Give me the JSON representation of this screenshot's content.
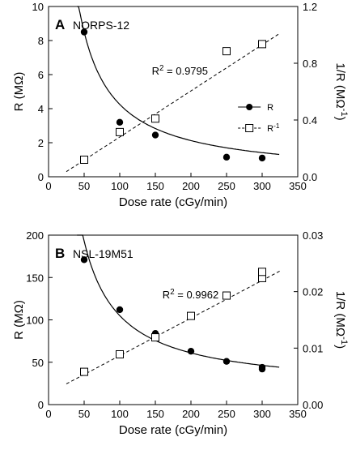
{
  "chart_data": [
    {
      "type": "scatter",
      "panel_letter": "A",
      "title": "NORPS-12",
      "xlabel": "Dose rate (cGy/min)",
      "ylabel": "R (MΩ)",
      "y2label": "1/R (MΩ⁻¹)",
      "xlim": [
        0,
        350
      ],
      "ylim": [
        0,
        10
      ],
      "y2lim": [
        0,
        1.2
      ],
      "x_ticks": [
        0,
        50,
        100,
        150,
        200,
        250,
        300,
        350
      ],
      "y_ticks": [
        0,
        2,
        4,
        6,
        8,
        10
      ],
      "y2_ticks": [
        0.0,
        0.4,
        0.8,
        1.2
      ],
      "y2_tick_labels": [
        "0.0",
        "0.4",
        "0.8",
        "1.2"
      ],
      "r2_annotation": "R² = 0.9795",
      "legend": [
        "R",
        "R⁻¹"
      ],
      "legend_position": "center-right",
      "series": [
        {
          "name": "R",
          "marker": "filled-circle",
          "fit": "power",
          "axis": "left",
          "x": [
            50,
            100,
            150,
            250,
            300
          ],
          "values": [
            8.5,
            3.2,
            2.45,
            1.15,
            1.1
          ]
        },
        {
          "name": "R⁻¹",
          "marker": "open-square",
          "fit": "linear-dashed",
          "axis": "right",
          "x": [
            50,
            100,
            150,
            250,
            300
          ],
          "values": [
            0.12,
            0.315,
            0.41,
            0.885,
            0.935
          ]
        }
      ],
      "fits": {
        "R": {
          "a": 425,
          "b": 1.0,
          "x_range": [
            40,
            325
          ]
        },
        "Rinv": {
          "slope": 0.00325,
          "intercept": -0.045,
          "x_range": [
            25,
            325
          ]
        }
      }
    },
    {
      "type": "scatter",
      "panel_letter": "B",
      "title": "NSL-19M51",
      "xlabel": "Dose rate (cGy/min)",
      "ylabel": "R (MΩ)",
      "y2label": "1/R (MΩ⁻¹)",
      "xlim": [
        0,
        350
      ],
      "ylim": [
        0,
        200
      ],
      "y2lim": [
        0,
        0.03
      ],
      "x_ticks": [
        0,
        50,
        100,
        150,
        200,
        250,
        300,
        350
      ],
      "y_ticks": [
        0,
        50,
        100,
        150,
        200
      ],
      "y2_ticks": [
        0.0,
        0.01,
        0.02,
        0.03
      ],
      "y2_tick_labels": [
        "0.00",
        "0.01",
        "0.02",
        "0.03"
      ],
      "r2_annotation": "R² = 0.9962",
      "series": [
        {
          "name": "R",
          "marker": "filled-circle",
          "fit": "power",
          "axis": "left",
          "x": [
            50,
            100,
            150,
            200,
            250,
            300,
            300
          ],
          "values": [
            171,
            112,
            84,
            63,
            51,
            44,
            42
          ]
        },
        {
          "name": "R⁻¹",
          "marker": "open-square",
          "fit": "linear-dashed",
          "axis": "right",
          "x": [
            50,
            100,
            150,
            200,
            250,
            300,
            300
          ],
          "values": [
            0.0058,
            0.0089,
            0.0119,
            0.0157,
            0.0193,
            0.0224,
            0.0235
          ]
        }
      ],
      "fits": {
        "R": {
          "a": 8800,
          "b": 1.0,
          "c": 17,
          "x_range": [
            40,
            325
          ]
        },
        "Rinv": {
          "slope": 6.66e-05,
          "intercept": 0.002,
          "x_range": [
            25,
            325
          ]
        }
      }
    }
  ]
}
